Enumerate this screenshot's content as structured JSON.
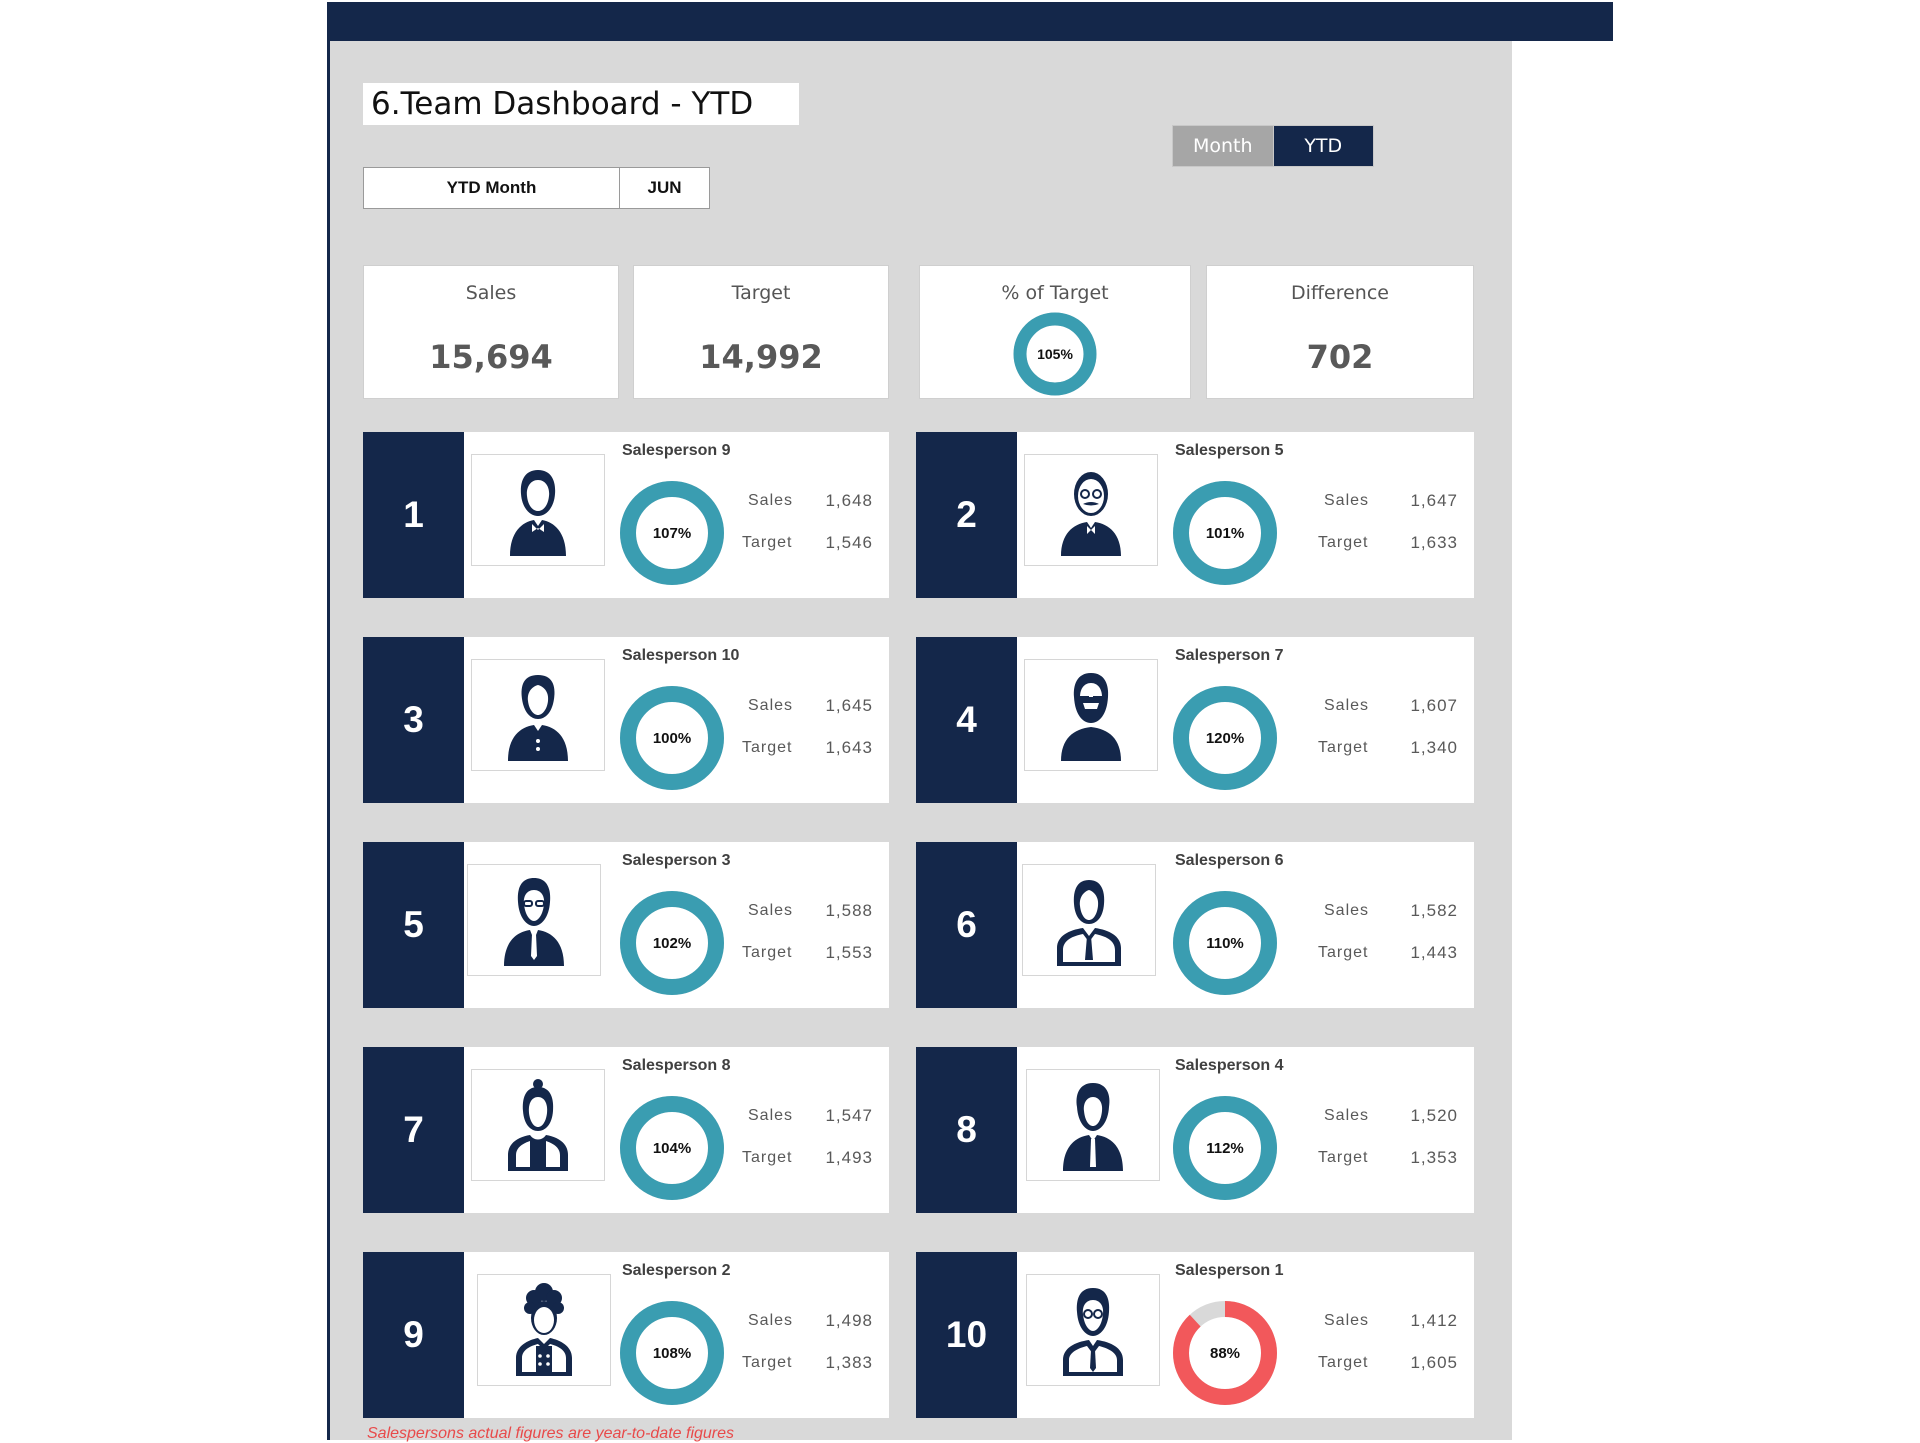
{
  "header": {
    "title": "6.Team Dashboard - YTD"
  },
  "period": {
    "label": "YTD Month",
    "value": "JUN"
  },
  "view_toggle": {
    "month_label": "Month",
    "ytd_label": "YTD",
    "selected": "YTD"
  },
  "summary": {
    "sales_label": "Sales",
    "sales_value": "15,694",
    "target_label": "Target",
    "target_value": "14,992",
    "pct_label": "% of Target",
    "pct_value": "105%",
    "pct_fraction": 1.05,
    "diff_label": "Difference",
    "diff_value": "702"
  },
  "metric_labels": {
    "sales": "Sales",
    "target": "Target"
  },
  "colors": {
    "navy": "#14274a",
    "teal": "#3a9db1",
    "red": "#f2585b",
    "track": "#d9d9d9"
  },
  "salespeople": [
    {
      "rank": "1",
      "name": "Salesperson 9",
      "sales": "1,648",
      "target": "1,546",
      "pct": "107%",
      "fraction": 1.07,
      "icon": "person-bowtie-icon"
    },
    {
      "rank": "2",
      "name": "Salesperson 5",
      "sales": "1,647",
      "target": "1,633",
      "pct": "101%",
      "fraction": 1.01,
      "icon": "person-glasses-mustache-icon"
    },
    {
      "rank": "3",
      "name": "Salesperson 10",
      "sales": "1,645",
      "target": "1,643",
      "pct": "100%",
      "fraction": 1.0,
      "icon": "person-cardigan-icon"
    },
    {
      "rank": "4",
      "name": "Salesperson 7",
      "sales": "1,607",
      "target": "1,340",
      "pct": "120%",
      "fraction": 1.2,
      "icon": "person-beard-sunglasses-icon"
    },
    {
      "rank": "5",
      "name": "Salesperson 3",
      "sales": "1,588",
      "target": "1,553",
      "pct": "102%",
      "fraction": 1.02,
      "icon": "person-glasses-suit-icon"
    },
    {
      "rank": "6",
      "name": "Salesperson 6",
      "sales": "1,582",
      "target": "1,443",
      "pct": "110%",
      "fraction": 1.1,
      "icon": "person-suit-icon"
    },
    {
      "rank": "7",
      "name": "Salesperson 8",
      "sales": "1,547",
      "target": "1,493",
      "pct": "104%",
      "fraction": 1.04,
      "icon": "person-topknot-icon"
    },
    {
      "rank": "8",
      "name": "Salesperson 4",
      "sales": "1,520",
      "target": "1,353",
      "pct": "112%",
      "fraction": 1.12,
      "icon": "person-tie-icon"
    },
    {
      "rank": "9",
      "name": "Salesperson 2",
      "sales": "1,498",
      "target": "1,383",
      "pct": "108%",
      "fraction": 1.08,
      "icon": "person-curly-hair-icon"
    },
    {
      "rank": "10",
      "name": "Salesperson 1",
      "sales": "1,412",
      "target": "1,605",
      "pct": "88%",
      "fraction": 0.88,
      "icon": "person-glasses-tie-icon"
    }
  ],
  "footnote": "Salespersons actual figures are year-to-date figures"
}
